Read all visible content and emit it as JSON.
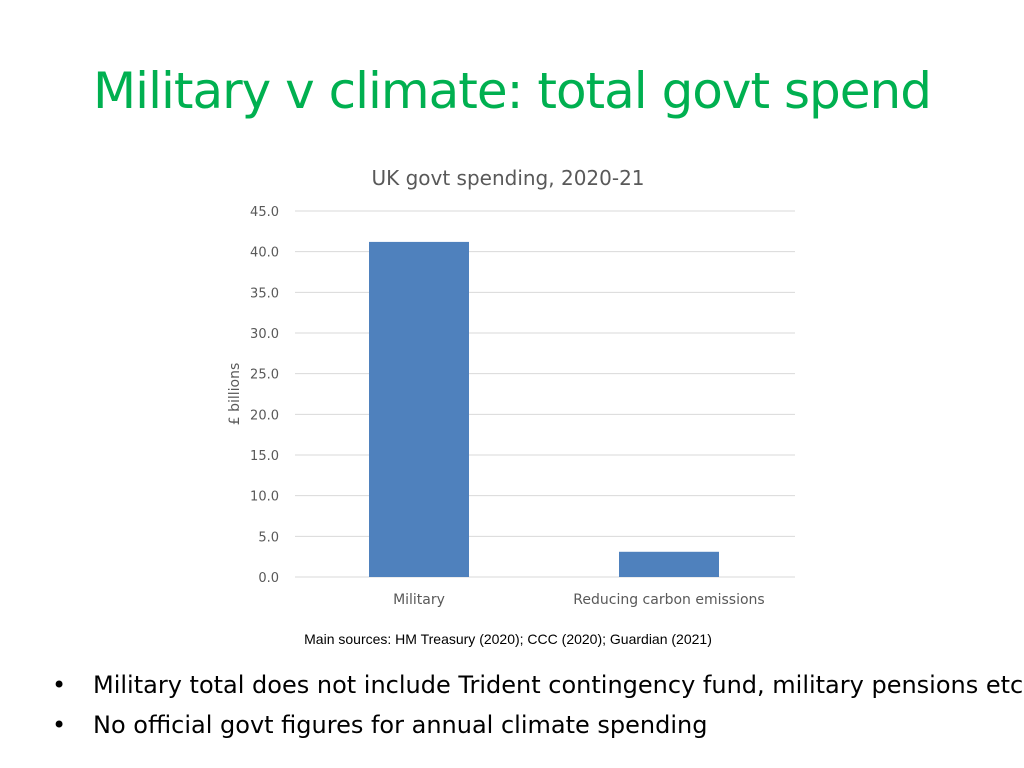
{
  "slide": {
    "title": "Military v climate: total govt spend",
    "source_note": "Main sources: HM Treasury (2020); CCC (2020); Guardian (2021)",
    "bullets": [
      "Military total does not include Trident contingency fund, military pensions etc",
      "No official govt figures for annual climate spending"
    ],
    "bullet_symbol": "•"
  },
  "chart_data": {
    "type": "bar",
    "title": "UK govt spending, 2020-21",
    "categories": [
      "Military",
      "Reducing carbon emissions"
    ],
    "values": [
      41.2,
      3.1
    ],
    "xlabel": "",
    "ylabel": "£ billions",
    "ylim": [
      0,
      45
    ],
    "ytick_step": 5,
    "ytick_labels": [
      "0.0",
      "5.0",
      "10.0",
      "15.0",
      "20.0",
      "25.0",
      "30.0",
      "35.0",
      "40.0",
      "45.0"
    ],
    "grid": true,
    "legend": "none",
    "bar_color": "#4f81bd",
    "grid_color": "#d9d9d9"
  },
  "colors": {
    "title": "#00b050",
    "axis_text": "#595959"
  }
}
